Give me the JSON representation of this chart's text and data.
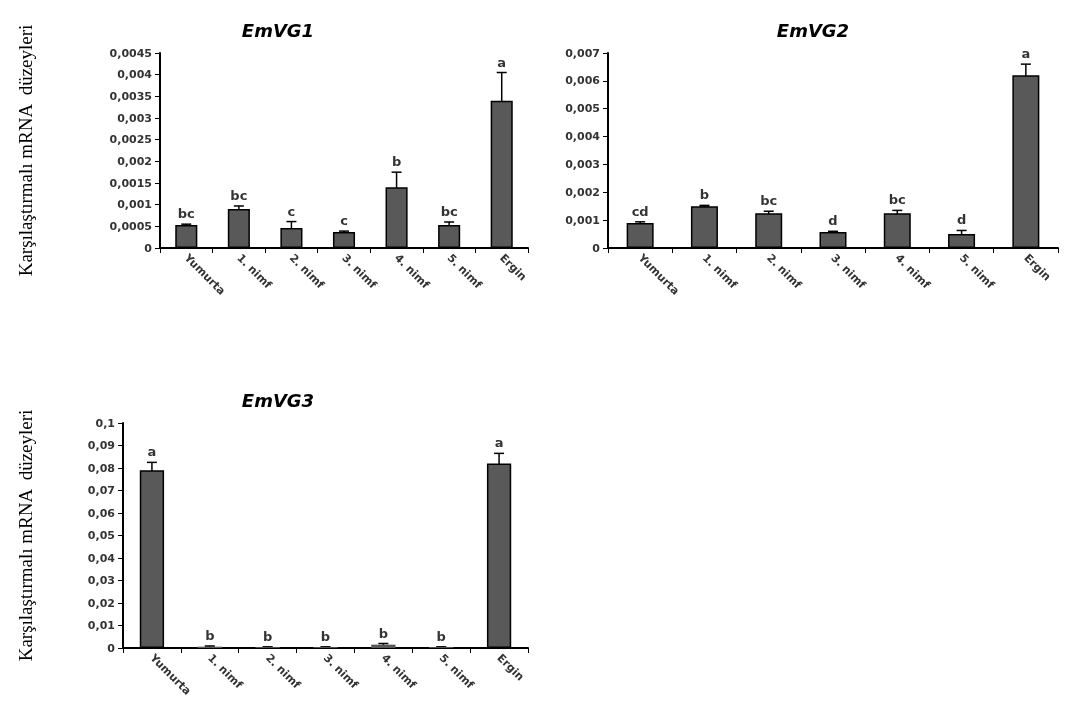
{
  "chart_data": [
    {
      "type": "bar",
      "title": "EmVG1",
      "ylabel": "Karşılaştırmalı mRNA  düzeyleri",
      "categories": [
        "Yumurta",
        "1. nimf",
        "2. nimf",
        "3. nimf",
        "4. nimf",
        "5. nimf",
        "Ergin"
      ],
      "color": "#595959",
      "values": [
        0.00053,
        0.0009,
        0.00046,
        0.00037,
        0.0014,
        0.00053,
        0.0034
      ],
      "errors": [
        2e-05,
        7e-05,
        0.00015,
        2e-05,
        0.00035,
        7e-05,
        0.00065
      ],
      "ylim": [
        0,
        0.0045
      ],
      "yticks": [
        {
          "value": 0,
          "label": "0"
        },
        {
          "value": 0.0005,
          "label": "0,0005"
        },
        {
          "value": 0.001,
          "label": "0,001"
        },
        {
          "value": 0.0015,
          "label": "0,0015"
        },
        {
          "value": 0.002,
          "label": "0,002"
        },
        {
          "value": 0.0025,
          "label": "0,0025"
        },
        {
          "value": 0.003,
          "label": "0,003"
        },
        {
          "value": 0.0035,
          "label": "0,0035"
        },
        {
          "value": 0.004,
          "label": "0,004"
        },
        {
          "value": 0.0045,
          "label": "0,0045"
        }
      ],
      "grid": false,
      "annotations": [
        {
          "text": "bc",
          "x": "Yumurta",
          "y": 0.00055
        },
        {
          "text": "bc",
          "x": "1. nimf",
          "y": 0.00097
        },
        {
          "text": "c",
          "x": "2. nimf",
          "y": 0.00061
        },
        {
          "text": "c",
          "x": "3. nimf",
          "y": 0.00039
        },
        {
          "text": "b",
          "x": "4. nimf",
          "y": 0.00175
        },
        {
          "text": "bc",
          "x": "5. nimf",
          "y": 0.0006
        },
        {
          "text": "a",
          "x": "Ergin",
          "y": 0.00405
        }
      ]
    },
    {
      "type": "bar",
      "title": "EmVG2",
      "categories": [
        "Yumurta",
        "1. nimf",
        "2. nimf",
        "3. nimf",
        "4. nimf",
        "5. nimf",
        "Ergin"
      ],
      "color": "#595959",
      "values": [
        0.0009,
        0.0015,
        0.00125,
        0.00057,
        0.00125,
        0.0005,
        0.0062
      ],
      "errors": [
        4e-05,
        3e-05,
        7e-05,
        3e-05,
        0.0001,
        0.00013,
        0.0004
      ],
      "ylim": [
        0,
        0.007
      ],
      "yticks": [
        {
          "value": 0,
          "label": "0"
        },
        {
          "value": 0.001,
          "label": "0,001"
        },
        {
          "value": 0.002,
          "label": "0,002"
        },
        {
          "value": 0.003,
          "label": "0,003"
        },
        {
          "value": 0.004,
          "label": "0,004"
        },
        {
          "value": 0.005,
          "label": "0,005"
        },
        {
          "value": 0.006,
          "label": "0,006"
        },
        {
          "value": 0.007,
          "label": "0,007"
        }
      ],
      "grid": false,
      "annotations": [
        {
          "text": "cd",
          "x": "Yumurta",
          "y": 0.00094
        },
        {
          "text": "b",
          "x": "1. nimf",
          "y": 0.00153
        },
        {
          "text": "bc",
          "x": "2. nimf",
          "y": 0.00132
        },
        {
          "text": "d",
          "x": "3. nimf",
          "y": 0.0006
        },
        {
          "text": "bc",
          "x": "4. nimf",
          "y": 0.00135
        },
        {
          "text": "d",
          "x": "5. nimf",
          "y": 0.00063
        },
        {
          "text": "a",
          "x": "Ergin",
          "y": 0.0066
        }
      ]
    },
    {
      "type": "bar",
      "title": "EmVG3",
      "ylabel": "Karşılaştırmalı mRNA  düzeyleri",
      "categories": [
        "Yumurta",
        "1. nimf",
        "2. nimf",
        "3. nimf",
        "4. nimf",
        "5. nimf",
        "Ergin"
      ],
      "color": "#595959",
      "values": [
        0.079,
        0.0006,
        0.0004,
        0.0004,
        0.0015,
        0.0004,
        0.082
      ],
      "errors": [
        0.0035,
        0.0003,
        0.0001,
        0.0001,
        0.0005,
        0.0001,
        0.0045
      ],
      "ylim": [
        0,
        0.1
      ],
      "yticks": [
        {
          "value": 0,
          "label": "0"
        },
        {
          "value": 0.01,
          "label": "0,01"
        },
        {
          "value": 0.02,
          "label": "0,02"
        },
        {
          "value": 0.03,
          "label": "0,03"
        },
        {
          "value": 0.04,
          "label": "0,04"
        },
        {
          "value": 0.05,
          "label": "0,05"
        },
        {
          "value": 0.06,
          "label": "0,06"
        },
        {
          "value": 0.07,
          "label": "0,07"
        },
        {
          "value": 0.08,
          "label": "0,08"
        },
        {
          "value": 0.09,
          "label": "0,09"
        },
        {
          "value": 0.1,
          "label": "0,1"
        }
      ],
      "grid": false,
      "annotations": [
        {
          "text": "a",
          "x": "Yumurta",
          "y": 0.0825
        },
        {
          "text": "b",
          "x": "1. nimf",
          "y": 0.0009
        },
        {
          "text": "b",
          "x": "2. nimf",
          "y": 0.0005
        },
        {
          "text": "b",
          "x": "3. nimf",
          "y": 0.0005
        },
        {
          "text": "b",
          "x": "4. nimf",
          "y": 0.002
        },
        {
          "text": "b",
          "x": "5. nimf",
          "y": 0.0005
        },
        {
          "text": "a",
          "x": "Ergin",
          "y": 0.0865
        }
      ]
    }
  ]
}
